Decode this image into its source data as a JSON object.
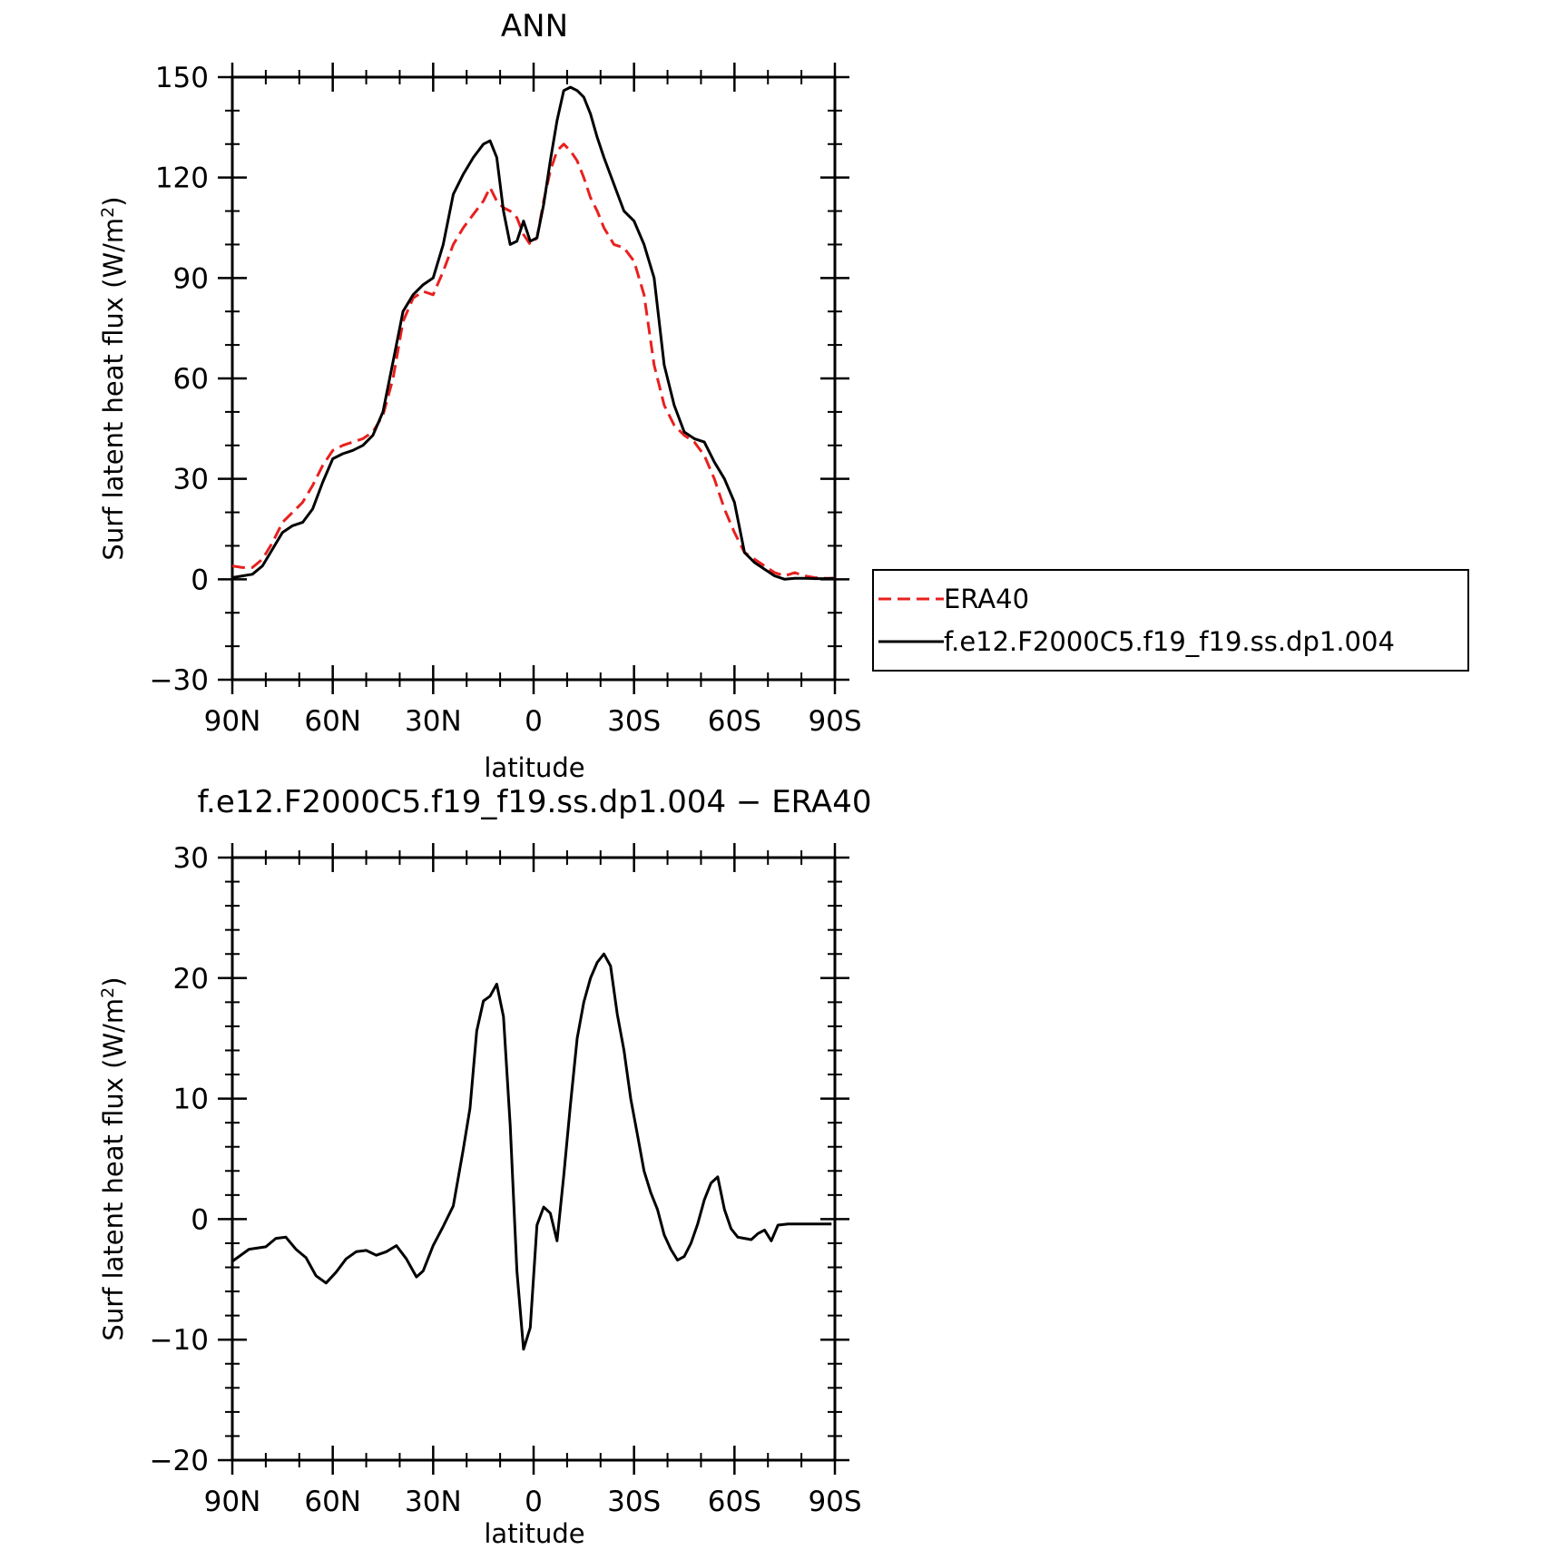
{
  "chart_data": [
    {
      "type": "line",
      "title": "ANN",
      "xlabel": "latitude",
      "ylabel": "Surf latent heat flux (W/m",
      "ylabel_sup": "2",
      "ylabel_close": ")",
      "xlim": [
        90,
        -90
      ],
      "ylim": [
        -30,
        150
      ],
      "yticks": [
        -30,
        0,
        30,
        60,
        90,
        120,
        150
      ],
      "ytick_labels": [
        "−30",
        "0",
        "30",
        "60",
        "90",
        "120",
        "150"
      ],
      "xticks": [
        90,
        60,
        30,
        0,
        -30,
        -60,
        -90
      ],
      "xtick_labels": [
        "90N",
        "60N",
        "30N",
        "0",
        "30S",
        "60S",
        "90S"
      ],
      "grid": false,
      "legend_position": "right",
      "series": [
        {
          "name": "ERA40",
          "color": "#e8201e",
          "dash": "dashed",
          "x": [
            90,
            87,
            84,
            81,
            78,
            75,
            72,
            69,
            66,
            63,
            60,
            57,
            54,
            51,
            48,
            45,
            42,
            39,
            36,
            33,
            30,
            27,
            24,
            21,
            18,
            15,
            13,
            11,
            9,
            7,
            5,
            3,
            1,
            -1,
            -3,
            -5,
            -7,
            -9,
            -11,
            -13,
            -15,
            -17,
            -19,
            -21,
            -24,
            -27,
            -30,
            -33,
            -36,
            -39,
            -42,
            -45,
            -48,
            -51,
            -54,
            -57,
            -60,
            -63,
            -66,
            -69,
            -72,
            -75,
            -78,
            -81,
            -84,
            -87,
            -90
          ],
          "y": [
            4,
            3.5,
            3.5,
            6,
            11,
            17,
            20,
            23,
            28,
            34,
            38.5,
            40,
            41,
            42,
            44,
            49,
            60,
            77,
            84,
            86,
            85,
            92,
            100,
            105,
            109,
            113,
            117,
            113,
            111,
            110,
            108,
            103,
            100,
            102,
            113,
            122,
            128,
            130,
            128,
            125,
            120,
            114,
            110,
            105,
            100,
            99,
            95,
            85,
            64,
            52,
            46,
            43,
            41,
            37,
            30,
            21,
            14,
            8,
            6,
            4,
            2,
            1,
            2,
            1,
            0.5,
            0.3,
            0.3
          ]
        },
        {
          "name": "f.e12.F2000C5.f19_f19.ss.dp1.004",
          "color": "#000000",
          "dash": "solid",
          "x": [
            90,
            87,
            84,
            81,
            78,
            75,
            72,
            69,
            66,
            63,
            60,
            57,
            54,
            51,
            48,
            45,
            42,
            39,
            36,
            33,
            30,
            27,
            24,
            21,
            18,
            15,
            13,
            11,
            9,
            7,
            5,
            3,
            1,
            -1,
            -3,
            -5,
            -7,
            -9,
            -11,
            -13,
            -15,
            -17,
            -19,
            -21,
            -24,
            -27,
            -30,
            -33,
            -36,
            -39,
            -42,
            -45,
            -48,
            -51,
            -54,
            -57,
            -60,
            -63,
            -66,
            -69,
            -72,
            -75,
            -78,
            -81,
            -84,
            -87,
            -90
          ],
          "y": [
            0.5,
            1,
            1.5,
            4,
            9,
            14,
            16,
            17,
            21,
            29,
            36,
            37.5,
            38.5,
            40,
            43,
            50,
            65,
            80,
            85,
            88,
            90,
            100,
            115,
            121,
            126,
            130,
            131,
            126,
            110,
            100,
            101,
            107,
            101,
            102,
            112,
            125,
            137,
            146,
            147,
            146,
            144,
            139,
            132,
            126,
            118,
            110,
            107,
            100,
            90,
            64,
            52,
            44,
            42,
            41,
            35,
            30,
            23,
            8,
            5,
            3,
            1,
            0,
            0.3,
            0.3,
            0.2,
            0.2,
            0.3
          ]
        }
      ]
    },
    {
      "type": "line",
      "title": "f.e12.F2000C5.f19_f19.ss.dp1.004 − ERA40",
      "xlabel": "latitude",
      "ylabel": "Surf latent heat flux (W/m",
      "ylabel_sup": "2",
      "ylabel_close": ")",
      "xlim": [
        90,
        -90
      ],
      "ylim": [
        -20,
        30
      ],
      "yticks": [
        -20,
        -10,
        0,
        10,
        20,
        30
      ],
      "ytick_labels": [
        "−20",
        "−10",
        "0",
        "10",
        "20",
        "30"
      ],
      "xticks": [
        90,
        60,
        30,
        0,
        -30,
        -60,
        -90
      ],
      "xtick_labels": [
        "90N",
        "60N",
        "30N",
        "0",
        "30S",
        "60S",
        "90S"
      ],
      "grid": false,
      "series": [
        {
          "color": "#000000",
          "dash": "solid",
          "x": [
            90,
            85,
            80,
            77,
            74,
            71,
            68,
            65,
            62,
            59,
            56,
            53,
            50,
            47,
            44,
            41,
            38,
            35,
            33,
            30,
            27,
            24,
            21,
            19,
            17,
            15,
            13,
            11,
            9,
            7,
            5,
            3,
            1,
            -1,
            -3,
            -5,
            -7,
            -9,
            -11,
            -13,
            -15,
            -17,
            -19,
            -21,
            -23,
            -25,
            -27,
            -29,
            -31,
            -33,
            -35,
            -37,
            -39,
            -41,
            -43,
            -45,
            -47,
            -49,
            -51,
            -53,
            -55,
            -57,
            -59,
            -61,
            -63,
            -65,
            -67,
            -69,
            -71,
            -73,
            -76,
            -79,
            -82,
            -85,
            -87,
            -89
          ],
          "y": [
            -3.5,
            -2.5,
            -2.3,
            -1.6,
            -1.5,
            -2.5,
            -3.2,
            -4.7,
            -5.3,
            -4.4,
            -3.3,
            -2.7,
            -2.6,
            -3.0,
            -2.7,
            -2.2,
            -3.3,
            -4.8,
            -4.3,
            -2.2,
            -0.6,
            1.1,
            5.8,
            9.2,
            15.6,
            18.1,
            18.5,
            19.5,
            16.8,
            7.8,
            -4.3,
            -10.8,
            -9.0,
            -0.5,
            1.0,
            0.5,
            -1.8,
            3.6,
            9.5,
            15.0,
            18.0,
            20.0,
            21.3,
            22.0,
            21.0,
            17.0,
            14.0,
            10.0,
            7.0,
            4.0,
            2.2,
            0.8,
            -1.3,
            -2.5,
            -3.4,
            -3.1,
            -2.0,
            -0.4,
            1.6,
            3.0,
            3.5,
            0.8,
            -0.8,
            -1.5,
            -1.6,
            -1.7,
            -1.2,
            -0.9,
            -1.8,
            -0.5,
            -0.4,
            -0.4,
            -0.4,
            -0.4,
            -0.4,
            -0.4
          ]
        }
      ]
    }
  ]
}
